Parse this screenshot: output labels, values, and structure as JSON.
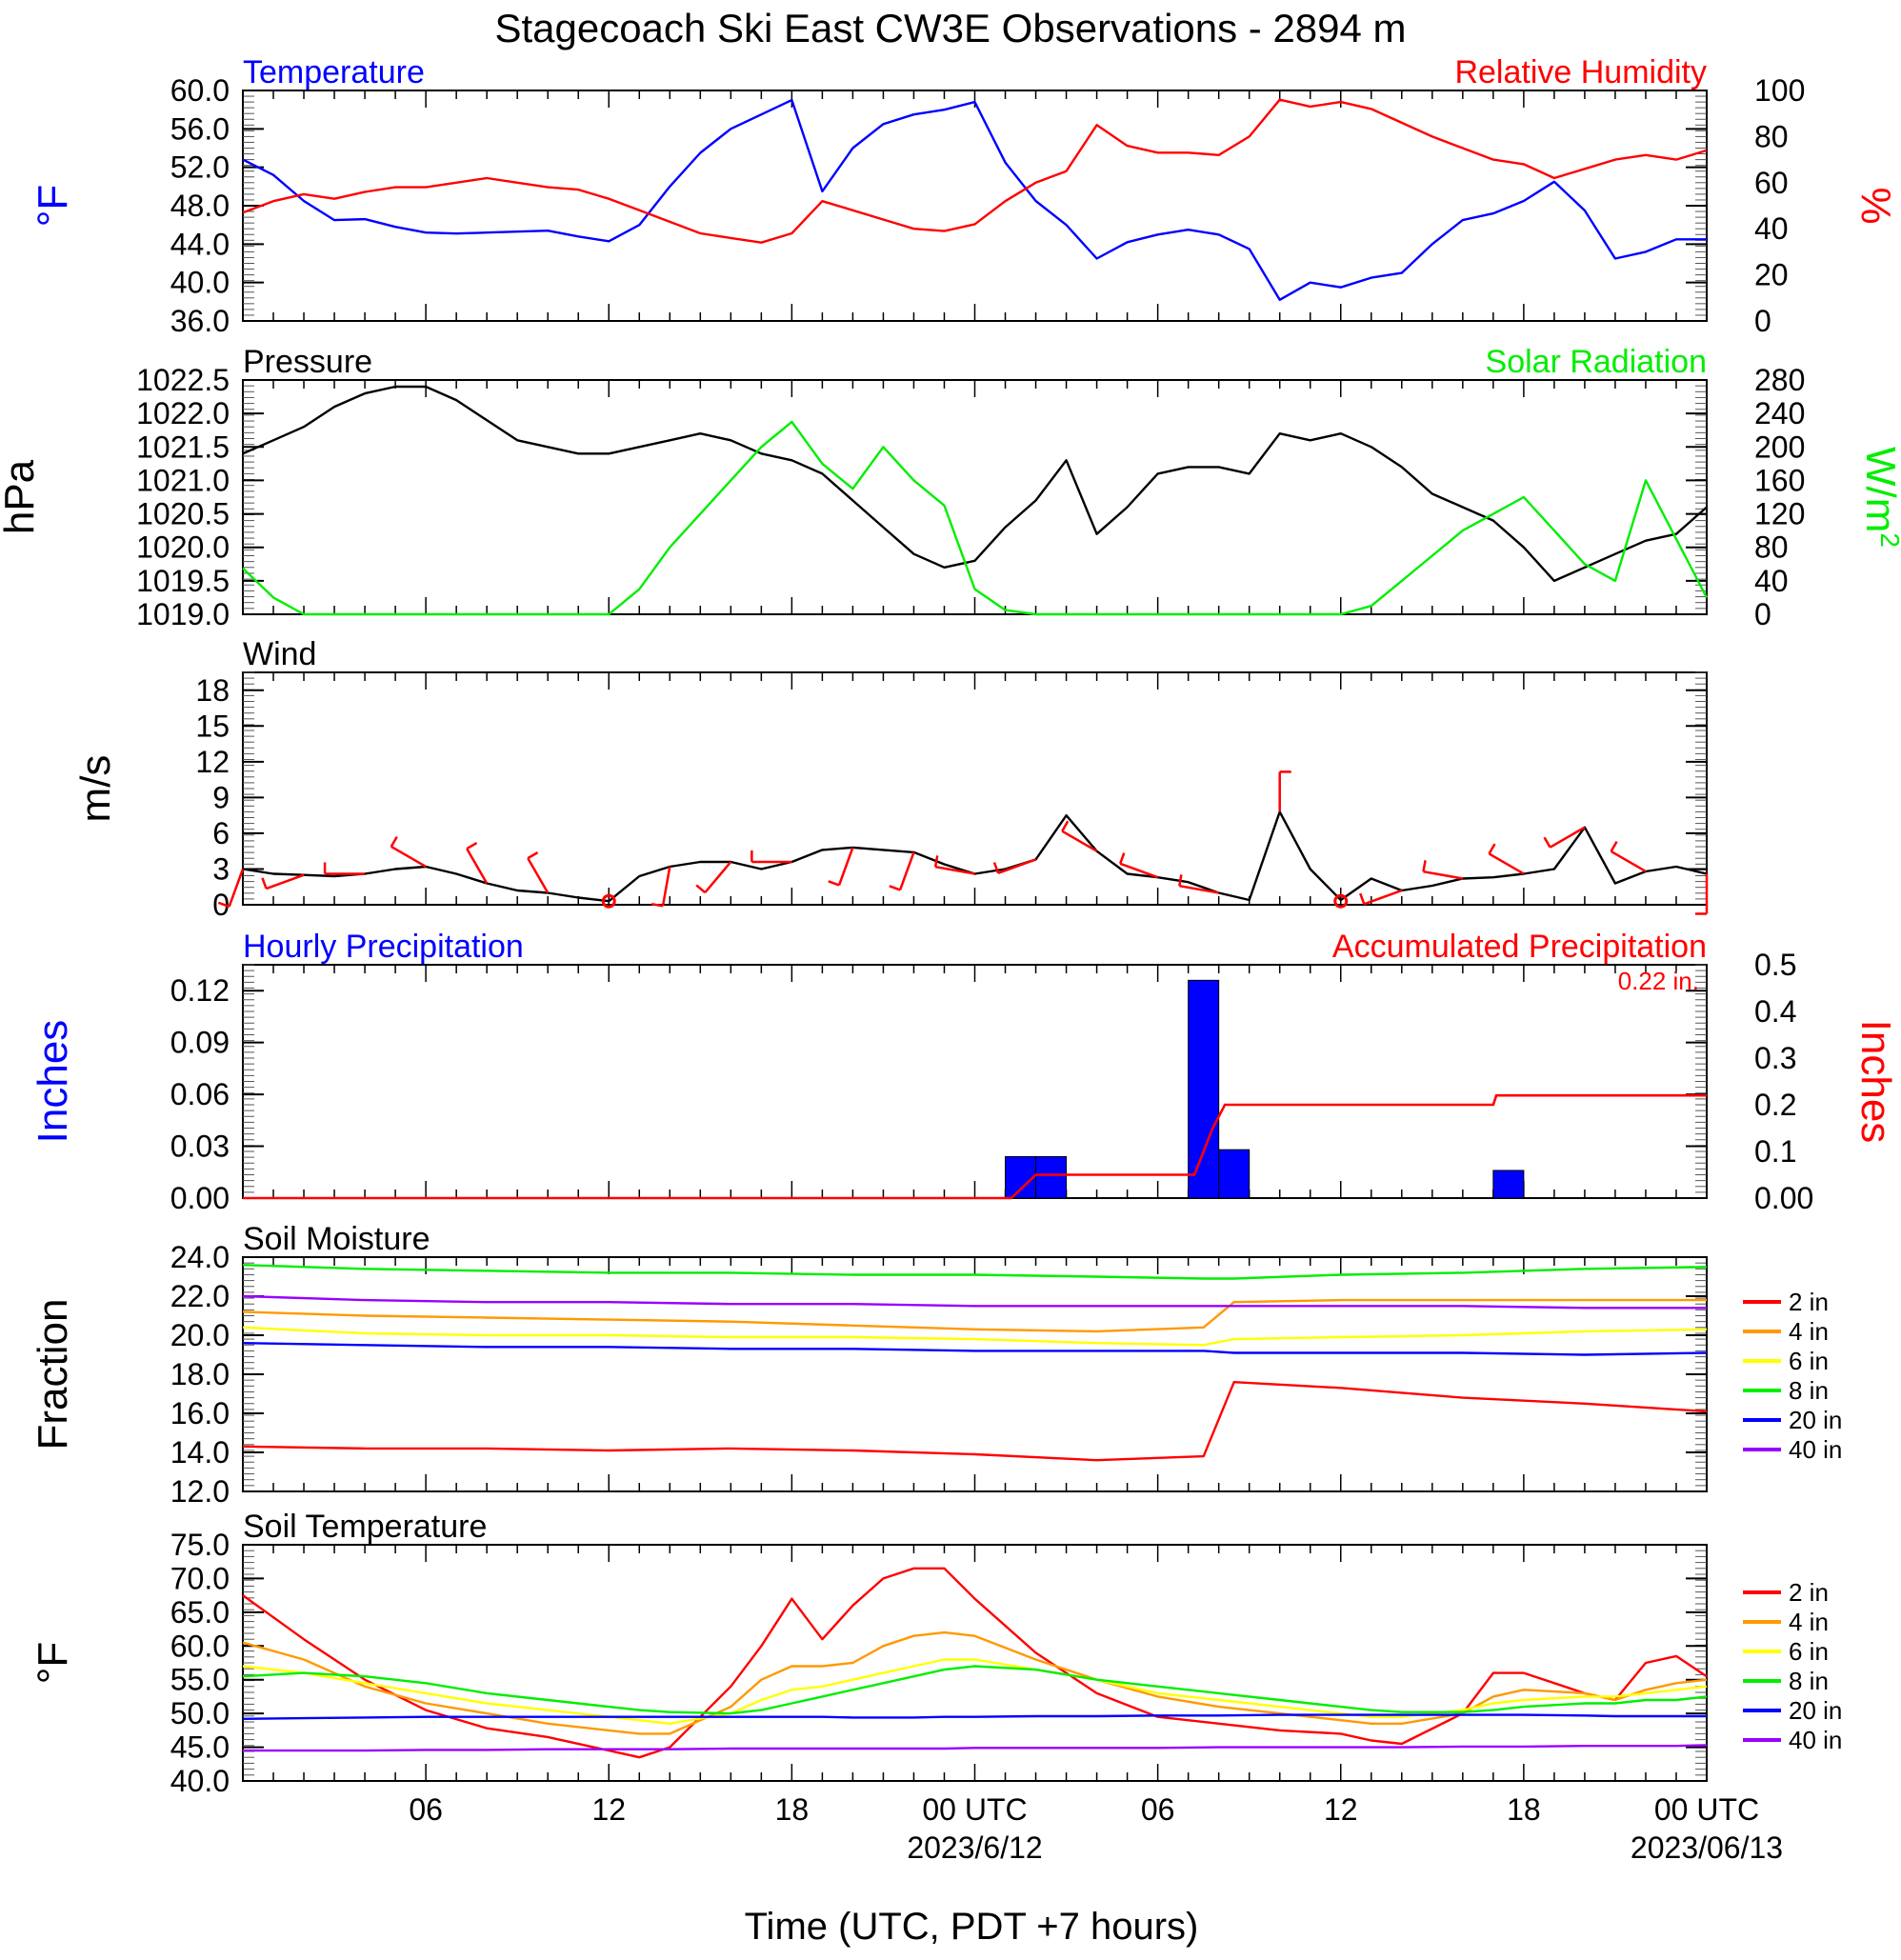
{
  "title": "Stagecoach Ski East CW3E Observations - 2894 m",
  "x_axis": {
    "tick_labels": [
      "06",
      "12",
      "18",
      "00 UTC",
      "06",
      "12",
      "18",
      "00 UTC"
    ],
    "date_labels": [
      "2023/6/12",
      "2023/06/13"
    ],
    "label": "Time (UTC, PDT +7 hours)"
  },
  "legend_soil": [
    "2 in",
    "4 in",
    "6 in",
    "8 in",
    "20 in",
    "40 in"
  ],
  "colors": {
    "blue": "#0000ff",
    "red": "#ff0000",
    "green": "#00ee00",
    "black": "#000000",
    "orange": "#ff9900",
    "yellow": "#ffff00",
    "purple": "#9900ff"
  },
  "chart_data": [
    {
      "type": "line",
      "panel": "temperature_rh",
      "title_left": "Temperature",
      "title_right": "Relative Humidity",
      "ylabel_left": "°F",
      "ylabel_right": "%",
      "ylim_left": [
        36,
        60
      ],
      "ylim_right": [
        0,
        100
      ],
      "yticks_left": [
        "60.0",
        "56.0",
        "52.0",
        "48.0",
        "44.0",
        "40.0",
        "36.0"
      ],
      "yticks_right": [
        "100",
        "80",
        "60",
        "40",
        "20",
        "0"
      ],
      "x_hours": [
        0,
        1,
        2,
        3,
        4,
        5,
        6,
        7,
        8,
        9,
        10,
        11,
        12,
        13,
        14,
        15,
        16,
        17,
        18,
        19,
        20,
        21,
        22,
        23,
        24,
        25,
        26,
        27,
        28,
        29,
        30,
        31,
        32,
        33,
        34,
        35,
        36,
        37,
        38,
        39,
        40,
        41,
        42,
        43,
        44,
        45,
        46,
        47,
        48
      ],
      "series": [
        {
          "name": "Temperature",
          "axis": "left",
          "color": "#0000ff",
          "values": [
            52.8,
            51.2,
            48.5,
            46.5,
            46.6,
            45.8,
            45.2,
            45.1,
            45.2,
            45.3,
            45.4,
            44.8,
            44.3,
            46.0,
            50.0,
            53.5,
            56.0,
            57.5,
            59.0,
            49.5,
            54.0,
            56.5,
            57.5,
            58.0,
            58.8,
            52.5,
            48.5,
            46.0,
            42.5,
            44.2,
            45.0,
            45.5,
            45.0,
            43.5,
            38.2,
            40.0,
            39.5,
            40.5,
            41.0,
            44.0,
            46.5,
            47.2,
            48.5,
            50.5,
            47.5,
            42.5,
            43.2,
            44.5,
            44.5
          ]
        },
        {
          "name": "Relative Humidity",
          "axis": "right",
          "color": "#ff0000",
          "values": [
            47,
            52,
            55,
            53,
            56,
            58,
            58,
            60,
            62,
            60,
            58,
            57,
            53,
            48,
            43,
            38,
            36,
            34,
            38,
            52,
            48,
            44,
            40,
            39,
            42,
            52,
            60,
            65,
            85,
            76,
            73,
            73,
            72,
            80,
            96,
            93,
            95,
            92,
            86,
            80,
            75,
            70,
            68,
            62,
            66,
            70,
            72,
            70,
            74
          ]
        }
      ]
    },
    {
      "type": "line",
      "panel": "pressure_solar",
      "title_left": "Pressure",
      "title_right": "Solar Radiation",
      "ylabel_left": "hPa",
      "ylabel_right": "W/m",
      "ylabel_right_superscript": "2",
      "ylim_left": [
        1019.0,
        1022.5
      ],
      "ylim_right": [
        0,
        280
      ],
      "yticks_left": [
        "1022.5",
        "1022.0",
        "1021.5",
        "1021.0",
        "1020.5",
        "1020.0",
        "1019.5",
        "1019.0"
      ],
      "yticks_right": [
        "280",
        "240",
        "200",
        "160",
        "120",
        "80",
        "40",
        "0"
      ],
      "x_hours": [
        0,
        1,
        2,
        3,
        4,
        5,
        6,
        7,
        8,
        9,
        10,
        11,
        12,
        13,
        14,
        15,
        16,
        17,
        18,
        19,
        20,
        21,
        22,
        23,
        24,
        25,
        26,
        27,
        28,
        29,
        30,
        31,
        32,
        33,
        34,
        35,
        36,
        37,
        38,
        39,
        40,
        41,
        42,
        43,
        44,
        45,
        46,
        47,
        48
      ],
      "series": [
        {
          "name": "Pressure",
          "axis": "left",
          "color": "#000000",
          "values": [
            1021.4,
            1021.6,
            1021.8,
            1022.1,
            1022.3,
            1022.4,
            1022.4,
            1022.2,
            1021.9,
            1021.6,
            1021.5,
            1021.4,
            1021.4,
            1021.5,
            1021.6,
            1021.7,
            1021.6,
            1021.4,
            1021.3,
            1021.1,
            1020.7,
            1020.3,
            1019.9,
            1019.7,
            1019.8,
            1020.3,
            1020.7,
            1021.3,
            1020.2,
            1020.6,
            1021.1,
            1021.2,
            1021.2,
            1021.1,
            1021.7,
            1021.6,
            1021.7,
            1021.5,
            1021.2,
            1020.8,
            1020.6,
            1020.4,
            1020.0,
            1019.5,
            1019.7,
            1019.9,
            1020.1,
            1020.2,
            1020.6
          ]
        },
        {
          "name": "Solar Radiation",
          "axis": "right",
          "color": "#00ee00",
          "values": [
            55,
            20,
            0,
            0,
            0,
            0,
            0,
            0,
            0,
            0,
            0,
            0,
            0,
            30,
            80,
            120,
            160,
            200,
            230,
            180,
            150,
            200,
            160,
            130,
            30,
            5,
            0,
            0,
            0,
            0,
            0,
            0,
            0,
            0,
            0,
            0,
            0,
            10,
            40,
            70,
            100,
            120,
            140,
            100,
            60,
            40,
            160,
            90,
            20
          ]
        }
      ]
    },
    {
      "type": "line",
      "panel": "wind",
      "title_left": "Wind",
      "ylabel_left": "m/s",
      "ylim_left": [
        0,
        19.5
      ],
      "yticks_left": [
        "18",
        "15",
        "12",
        "9",
        "6",
        "3",
        "0"
      ],
      "x_hours": [
        0,
        1,
        2,
        3,
        4,
        5,
        6,
        7,
        8,
        9,
        10,
        11,
        12,
        13,
        14,
        15,
        16,
        17,
        18,
        19,
        20,
        21,
        22,
        23,
        24,
        25,
        26,
        27,
        28,
        29,
        30,
        31,
        32,
        33,
        34,
        35,
        36,
        37,
        38,
        39,
        40,
        41,
        42,
        43,
        44,
        45,
        46,
        47,
        48
      ],
      "series": [
        {
          "name": "Wind",
          "color": "#000000",
          "values": [
            3.0,
            2.6,
            2.5,
            2.4,
            2.6,
            3.0,
            3.2,
            2.6,
            1.8,
            1.2,
            1.0,
            0.6,
            0.3,
            2.4,
            3.2,
            3.6,
            3.6,
            3.0,
            3.6,
            4.6,
            4.8,
            4.6,
            4.4,
            3.4,
            2.6,
            3.0,
            3.8,
            7.5,
            4.5,
            2.6,
            2.3,
            1.9,
            1.0,
            0.4,
            7.8,
            3.0,
            0.4,
            2.2,
            1.2,
            1.6,
            2.2,
            2.3,
            2.6,
            3.0,
            6.5,
            1.8,
            2.8,
            3.2,
            2.6
          ]
        },
        {
          "name": "Wind barbs",
          "color": "#ff0000",
          "direction_deg": [
            200,
            240,
            250,
            260,
            270,
            280,
            300,
            310,
            330,
            340,
            330,
            320,
            300,
            200,
            190,
            200,
            220,
            240,
            270,
            200,
            200,
            230,
            200,
            270,
            280,
            250,
            250,
            250,
            300,
            300,
            290,
            290,
            280,
            0,
            0,
            270,
            0,
            240,
            250,
            270,
            280,
            300,
            300,
            290,
            240,
            310,
            300,
            290,
            180
          ]
        }
      ]
    },
    {
      "type": "bar",
      "panel": "precipitation",
      "title_left": "Hourly Precipitation",
      "title_right": "Accumulated Precipitation",
      "annotation": "0.22 in.",
      "ylabel_left": "Inches",
      "ylabel_right": "Inches",
      "ylim_left": [
        0,
        0.135
      ],
      "ylim_right": [
        0,
        0.5
      ],
      "yticks_left": [
        "0.12",
        "0.09",
        "0.06",
        "0.03",
        "0.00"
      ],
      "yticks_right": [
        "0.5",
        "0.4",
        "0.3",
        "0.2",
        "0.1",
        "0.00"
      ],
      "bars": {
        "name": "Hourly Precipitation",
        "color": "#0000ff",
        "hours": [
          25,
          26,
          31,
          32,
          41
        ],
        "values": [
          0.024,
          0.024,
          0.126,
          0.028,
          0.016
        ]
      },
      "accumulated": {
        "name": "Accumulated Precipitation",
        "color": "#ff0000",
        "x_hours": [
          0,
          25.2,
          26.0,
          31.2,
          31.8,
          32.2,
          41.0,
          41.1,
          48
        ],
        "values": [
          0,
          0,
          0.05,
          0.05,
          0.15,
          0.2,
          0.2,
          0.22,
          0.22
        ]
      }
    },
    {
      "type": "line",
      "panel": "soil_moisture",
      "title_left": "Soil Moisture",
      "ylabel_left": "Fraction",
      "ylim_left": [
        12,
        24
      ],
      "yticks_left": [
        "24.0",
        "22.0",
        "20.0",
        "18.0",
        "16.0",
        "14.0",
        "12.0"
      ],
      "x_hours": [
        0,
        4,
        8,
        12,
        16,
        20,
        24,
        28,
        31.5,
        32.5,
        36,
        40,
        44,
        48
      ],
      "series": [
        {
          "name": "2 in",
          "color": "#ff0000",
          "values": [
            14.3,
            14.2,
            14.2,
            14.1,
            14.2,
            14.1,
            13.9,
            13.6,
            13.8,
            17.6,
            17.3,
            16.8,
            16.5,
            16.1
          ]
        },
        {
          "name": "4 in",
          "color": "#ff9900",
          "values": [
            21.2,
            21.0,
            20.9,
            20.8,
            20.7,
            20.5,
            20.3,
            20.2,
            20.4,
            21.7,
            21.8,
            21.8,
            21.8,
            21.8
          ]
        },
        {
          "name": "6 in",
          "color": "#ffff00",
          "values": [
            20.4,
            20.1,
            20.0,
            20.0,
            19.9,
            19.9,
            19.8,
            19.6,
            19.5,
            19.8,
            19.9,
            20.0,
            20.2,
            20.3
          ]
        },
        {
          "name": "8 in",
          "color": "#00ee00",
          "values": [
            23.6,
            23.4,
            23.3,
            23.2,
            23.2,
            23.1,
            23.1,
            23.0,
            22.9,
            22.9,
            23.1,
            23.2,
            23.4,
            23.5
          ]
        },
        {
          "name": "20 in",
          "color": "#0000ff",
          "values": [
            19.6,
            19.5,
            19.4,
            19.4,
            19.3,
            19.3,
            19.2,
            19.2,
            19.2,
            19.1,
            19.1,
            19.1,
            19.0,
            19.1
          ]
        },
        {
          "name": "40 in",
          "color": "#9900ff",
          "values": [
            22.0,
            21.8,
            21.7,
            21.7,
            21.6,
            21.6,
            21.5,
            21.5,
            21.5,
            21.5,
            21.5,
            21.5,
            21.4,
            21.4
          ]
        }
      ]
    },
    {
      "type": "line",
      "panel": "soil_temperature",
      "title_left": "Soil Temperature",
      "ylabel_left": "°F",
      "ylim_left": [
        40,
        75
      ],
      "yticks_left": [
        "75.0",
        "70.0",
        "65.0",
        "60.0",
        "55.0",
        "50.0",
        "45.0",
        "40.0"
      ],
      "x_hours": [
        0,
        2,
        4,
        6,
        8,
        10,
        12,
        13,
        14,
        16,
        17,
        18,
        19,
        20,
        21,
        22,
        23,
        24,
        26,
        28,
        30,
        32,
        34,
        36,
        37,
        38,
        40,
        41,
        42,
        44,
        45,
        46,
        47,
        48
      ],
      "series": [
        {
          "name": "2 in",
          "color": "#ff0000",
          "values": [
            67.5,
            61.0,
            55.0,
            50.5,
            47.8,
            46.5,
            44.5,
            43.5,
            45.0,
            54.0,
            60.0,
            67.0,
            61.0,
            66.0,
            70.0,
            71.5,
            71.5,
            67.0,
            59.0,
            53.0,
            49.5,
            48.5,
            47.5,
            47.0,
            46.0,
            45.5,
            50.0,
            56.0,
            56.0,
            53.0,
            52.0,
            57.5,
            58.5,
            55.5
          ]
        },
        {
          "name": "4 in",
          "color": "#ff9900",
          "values": [
            60.5,
            58.0,
            54.0,
            51.5,
            50.0,
            48.5,
            47.5,
            47.0,
            47.0,
            51.0,
            55.0,
            57.0,
            57.0,
            57.5,
            60.0,
            61.5,
            62.0,
            61.5,
            58.0,
            55.0,
            52.5,
            51.0,
            50.0,
            49.0,
            48.5,
            48.5,
            50.0,
            52.5,
            53.5,
            53.0,
            52.0,
            53.5,
            54.5,
            55.0
          ]
        },
        {
          "name": "6 in",
          "color": "#ffff00",
          "values": [
            57.0,
            56.0,
            54.5,
            53.0,
            51.5,
            50.5,
            49.5,
            49.0,
            48.5,
            50.0,
            52.0,
            53.5,
            54.0,
            55.0,
            56.0,
            57.0,
            58.0,
            58.0,
            56.5,
            55.0,
            53.0,
            52.0,
            51.0,
            50.0,
            49.5,
            49.5,
            50.5,
            51.5,
            52.0,
            52.5,
            52.5,
            53.0,
            53.5,
            54.0
          ]
        },
        {
          "name": "8 in",
          "color": "#00ee00",
          "values": [
            55.5,
            56.0,
            55.5,
            54.5,
            53.0,
            52.0,
            51.0,
            50.5,
            50.2,
            50.0,
            50.5,
            51.5,
            52.5,
            53.5,
            54.5,
            55.5,
            56.5,
            57.0,
            56.5,
            55.0,
            54.0,
            53.0,
            52.0,
            51.0,
            50.5,
            50.2,
            50.2,
            50.5,
            51.0,
            51.5,
            51.5,
            52.0,
            52.0,
            52.5
          ]
        },
        {
          "name": "20 in",
          "color": "#0000ff",
          "values": [
            49.2,
            49.3,
            49.4,
            49.5,
            49.5,
            49.5,
            49.5,
            49.5,
            49.5,
            49.5,
            49.5,
            49.5,
            49.5,
            49.4,
            49.4,
            49.4,
            49.5,
            49.5,
            49.6,
            49.6,
            49.7,
            49.7,
            49.8,
            49.8,
            49.8,
            49.8,
            49.8,
            49.8,
            49.8,
            49.7,
            49.6,
            49.6,
            49.6,
            49.6
          ]
        },
        {
          "name": "40 in",
          "color": "#9900ff",
          "values": [
            44.5,
            44.5,
            44.5,
            44.6,
            44.6,
            44.7,
            44.7,
            44.7,
            44.7,
            44.8,
            44.8,
            44.8,
            44.8,
            44.8,
            44.8,
            44.8,
            44.8,
            44.9,
            44.9,
            44.9,
            44.9,
            45.0,
            45.0,
            45.0,
            45.0,
            45.0,
            45.1,
            45.1,
            45.1,
            45.2,
            45.2,
            45.2,
            45.2,
            45.3
          ]
        }
      ]
    }
  ]
}
